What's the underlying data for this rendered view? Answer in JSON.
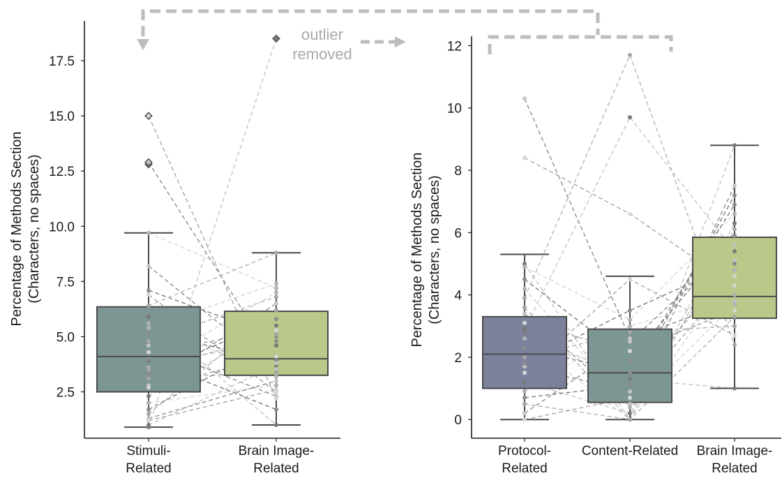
{
  "chart_data": [
    {
      "type": "box",
      "panel": "left",
      "ylabel": [
        "Percentage of Methods Section",
        "(Characters, no spaces)"
      ],
      "yticks": [
        2.5,
        5.0,
        7.5,
        10.0,
        12.5,
        15.0,
        17.5
      ],
      "ytick_labels": [
        "2.5",
        "5.0",
        "7.5",
        "10.0",
        "12.5",
        "15.0",
        "17.5"
      ],
      "ylim": [
        0.4,
        19.3
      ],
      "categories": [
        [
          "Stimuli-",
          "Related"
        ],
        [
          "Brain Image-",
          "Related"
        ]
      ],
      "boxes": [
        {
          "whisker_low": 0.9,
          "q1": 2.5,
          "median": 4.1,
          "q3": 6.35,
          "whisker_high": 9.7,
          "color": "#7c9694",
          "outliers": [
            12.8,
            12.9,
            15.0
          ]
        },
        {
          "whisker_low": 1.0,
          "q1": 3.25,
          "median": 4.0,
          "q3": 6.15,
          "whisker_high": 8.8,
          "color": "#b8c98a",
          "outliers": [
            18.5
          ]
        }
      ],
      "pairs": [
        [
          8.2,
          3.5
        ],
        [
          6.9,
          2.5
        ],
        [
          5.9,
          1.0
        ],
        [
          5.4,
          7.4
        ],
        [
          5.2,
          3.9
        ],
        [
          4.8,
          6.8
        ],
        [
          4.6,
          2.3
        ],
        [
          4.3,
          5.3
        ],
        [
          3.9,
          4.6
        ],
        [
          3.6,
          7.0
        ],
        [
          3.3,
          5.8
        ],
        [
          3.1,
          3.4
        ],
        [
          2.8,
          6.5
        ],
        [
          2.7,
          4.1
        ],
        [
          2.3,
          5.5
        ],
        [
          2.0,
          2.8
        ],
        [
          1.7,
          4.8
        ],
        [
          1.5,
          6.2
        ],
        [
          1.3,
          3.0
        ],
        [
          1.2,
          2.6
        ],
        [
          1.0,
          3.7
        ],
        [
          9.7,
          7.2
        ],
        [
          7.1,
          5.0
        ],
        [
          6.4,
          8.8
        ],
        [
          12.9,
          3.8
        ],
        [
          15.0,
          2.2
        ],
        [
          0.9,
          18.5
        ],
        [
          5.6,
          3.2
        ],
        [
          4.0,
          1.7
        ],
        [
          3.5,
          5.1
        ]
      ]
    },
    {
      "type": "box",
      "panel": "right",
      "ylabel": [
        "Percentage of Methods Section",
        "(Characters, no spaces)"
      ],
      "yticks": [
        0,
        2,
        4,
        6,
        8,
        10,
        12
      ],
      "ytick_labels": [
        "0",
        "2",
        "4",
        "6",
        "8",
        "10",
        "12"
      ],
      "ylim": [
        -0.6,
        12.3
      ],
      "categories": [
        [
          "Protocol-",
          "Related"
        ],
        [
          "Content-Related"
        ],
        [
          "Brain Image-",
          "Related"
        ]
      ],
      "boxes": [
        {
          "whisker_low": 0.0,
          "q1": 1.0,
          "median": 2.1,
          "q3": 3.3,
          "whisker_high": 5.3,
          "color": "#7c819c",
          "outliers": []
        },
        {
          "whisker_low": 0.0,
          "q1": 0.55,
          "median": 1.5,
          "q3": 2.9,
          "whisker_high": 4.6,
          "color": "#7c9694",
          "outliers": []
        },
        {
          "whisker_low": 1.0,
          "q1": 3.25,
          "median": 3.95,
          "q3": 5.85,
          "whisker_high": 8.8,
          "color": "#b8c98a",
          "outliers": []
        }
      ],
      "triples": [
        [
          10.3,
          2.6,
          3.8
        ],
        [
          8.4,
          6.6,
          4.3
        ],
        [
          5.0,
          0.0,
          8.8
        ],
        [
          4.9,
          3.2,
          6.6
        ],
        [
          4.5,
          1.9,
          5.9
        ],
        [
          3.9,
          11.7,
          2.4
        ],
        [
          3.4,
          0.5,
          7.5
        ],
        [
          3.1,
          2.2,
          3.5
        ],
        [
          2.9,
          9.7,
          5.4
        ],
        [
          2.6,
          0.0,
          4.8
        ],
        [
          2.3,
          1.5,
          6.9
        ],
        [
          2.0,
          2.8,
          3.0
        ],
        [
          1.7,
          0.9,
          5.1
        ],
        [
          1.5,
          4.5,
          2.7
        ],
        [
          1.2,
          0.2,
          6.3
        ],
        [
          0.9,
          3.0,
          4.0
        ],
        [
          0.7,
          1.1,
          7.2
        ],
        [
          0.5,
          0.0,
          3.3
        ],
        [
          0.2,
          2.5,
          5.6
        ],
        [
          0.0,
          0.7,
          4.6
        ],
        [
          2.8,
          1.3,
          1.0
        ],
        [
          4.2,
          0.4,
          3.7
        ],
        [
          1.8,
          3.5,
          5.0
        ],
        [
          3.6,
          0.0,
          6.1
        ]
      ]
    }
  ],
  "annotation": {
    "line1": "outlier",
    "line2": "removed"
  },
  "colors": {
    "axis": "#1a1a1a",
    "box_edge": "#4a4a4a",
    "connector": "#bdbdbd",
    "pair_lines": "#9a9a9a"
  }
}
